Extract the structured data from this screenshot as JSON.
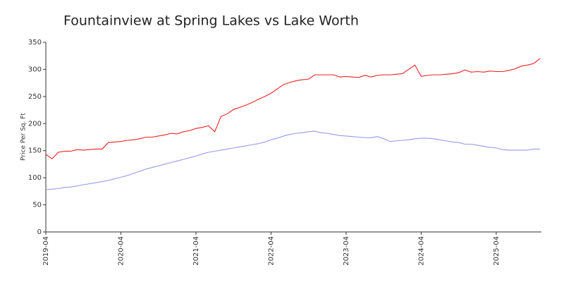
{
  "chart_data": {
    "type": "line",
    "title": "Fountainview at Spring Lakes vs Lake Worth",
    "ylabel": "Price Per Sq. Ft",
    "x": [
      "2019-04",
      "2019-05",
      "2019-06",
      "2019-07",
      "2019-08",
      "2019-09",
      "2019-10",
      "2019-11",
      "2019-12",
      "2020-01",
      "2020-02",
      "2020-03",
      "2020-04",
      "2020-05",
      "2020-06",
      "2020-07",
      "2020-08",
      "2020-09",
      "2020-10",
      "2020-11",
      "2020-12",
      "2021-01",
      "2021-02",
      "2021-03",
      "2021-04",
      "2021-05",
      "2021-06",
      "2021-07",
      "2021-08",
      "2021-09",
      "2021-10",
      "2021-11",
      "2021-12",
      "2022-01",
      "2022-02",
      "2022-03",
      "2022-04",
      "2022-05",
      "2022-06",
      "2022-07",
      "2022-08",
      "2022-09",
      "2022-10",
      "2022-11",
      "2022-12",
      "2023-01",
      "2023-02",
      "2023-03",
      "2023-04",
      "2023-05",
      "2023-06",
      "2023-07",
      "2023-08",
      "2023-09",
      "2023-10",
      "2023-11",
      "2023-12",
      "2024-01",
      "2024-02",
      "2024-03",
      "2024-04",
      "2024-05",
      "2024-06",
      "2024-07",
      "2024-08",
      "2024-09",
      "2024-10",
      "2024-11",
      "2024-12",
      "2025-01",
      "2025-02",
      "2025-03",
      "2025-04",
      "2025-05",
      "2025-06",
      "2025-07",
      "2025-08",
      "2025-09",
      "2025-10",
      "2025-11"
    ],
    "xticks": [
      "2019-04",
      "2020-04",
      "2021-04",
      "2022-04",
      "2023-04",
      "2024-04",
      "2025-04"
    ],
    "series": [
      {
        "color": "#ee2222",
        "values": [
          143,
          135,
          147,
          149,
          149,
          152,
          151,
          152,
          153,
          153,
          165,
          166,
          167,
          169,
          170,
          172,
          175,
          175,
          177,
          179,
          182,
          181,
          185,
          187,
          191,
          193,
          196,
          185,
          213,
          218,
          226,
          230,
          234,
          239,
          245,
          250,
          256,
          264,
          272,
          276,
          279,
          281,
          282,
          290,
          290,
          290,
          290,
          286,
          287,
          286,
          285,
          289,
          286,
          289,
          290,
          290,
          291,
          292,
          300,
          308,
          287,
          289,
          290,
          290,
          291,
          292,
          294,
          299,
          295,
          296,
          295,
          297,
          296,
          296,
          298,
          301,
          306,
          308,
          311,
          320
        ]
      },
      {
        "color": "#9999ee",
        "values": [
          78,
          79,
          80,
          82,
          83,
          85,
          87,
          89,
          91,
          93,
          95,
          98,
          101,
          104,
          108,
          112,
          116,
          119,
          122,
          125,
          128,
          131,
          134,
          137,
          140,
          144,
          147,
          149,
          151,
          153,
          155,
          157,
          159,
          161,
          163,
          166,
          170,
          173,
          177,
          180,
          182,
          183,
          185,
          186,
          183,
          182,
          180,
          178,
          177,
          176,
          175,
          174,
          174,
          176,
          172,
          167,
          168,
          169,
          170,
          172,
          173,
          173,
          172,
          170,
          168,
          166,
          165,
          162,
          162,
          160,
          158,
          156,
          155,
          152,
          151,
          151,
          151,
          151,
          153,
          153
        ]
      }
    ],
    "ylim": [
      0,
      350
    ],
    "yticks": [
      0,
      50,
      100,
      150,
      200,
      250,
      300,
      350
    ]
  }
}
